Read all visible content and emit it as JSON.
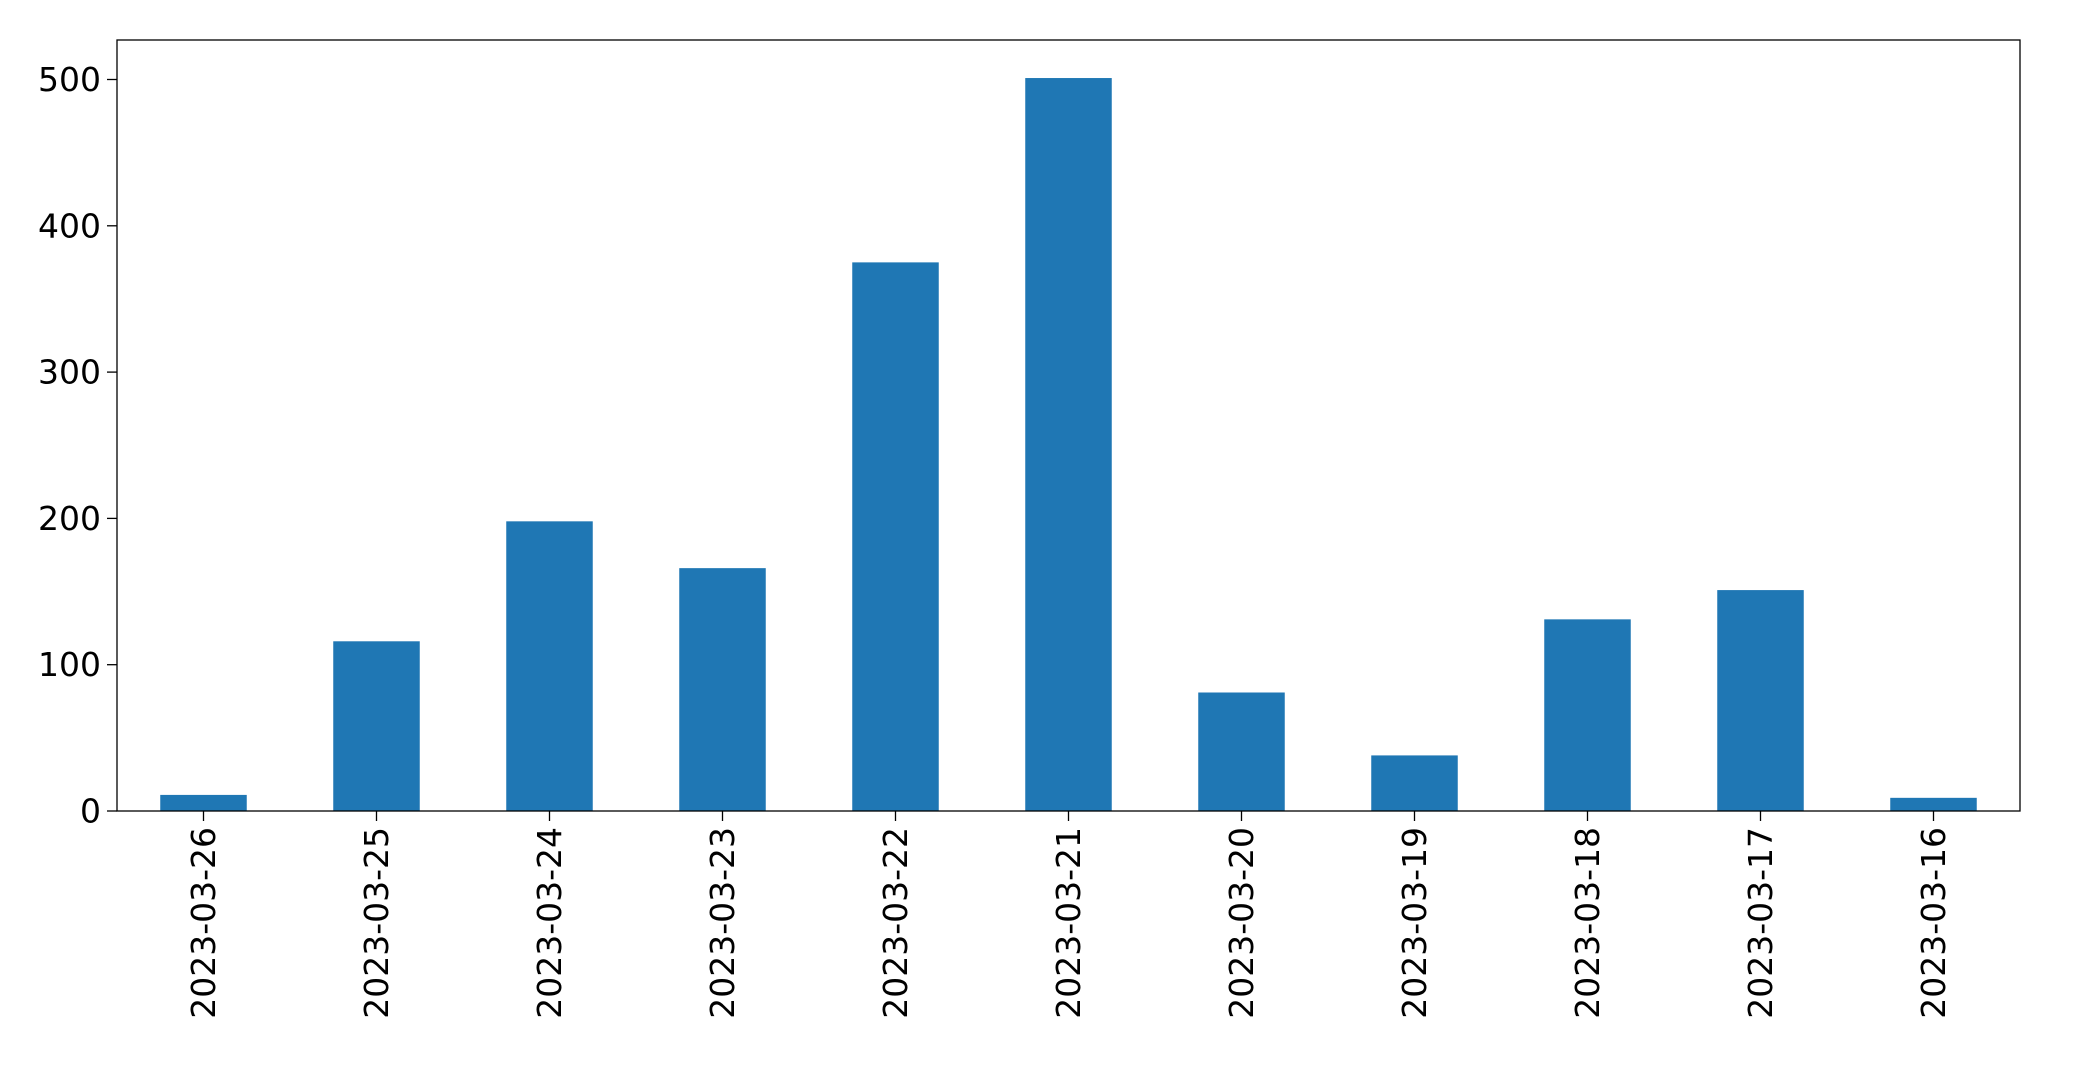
{
  "chart_data": {
    "type": "bar",
    "title": "",
    "xlabel": "",
    "ylabel": "",
    "categories": [
      "2023-03-26",
      "2023-03-25",
      "2023-03-24",
      "2023-03-23",
      "2023-03-22",
      "2023-03-21",
      "2023-03-20",
      "2023-03-19",
      "2023-03-18",
      "2023-03-17",
      "2023-03-16"
    ],
    "values": [
      11,
      116,
      198,
      166,
      375,
      501,
      81,
      38,
      131,
      151,
      9
    ],
    "ylim": [
      0,
      527
    ],
    "yticks": [
      0,
      100,
      200,
      300,
      400,
      500
    ],
    "bar_color": "#1f77b4",
    "grid": false,
    "legend": "none"
  }
}
